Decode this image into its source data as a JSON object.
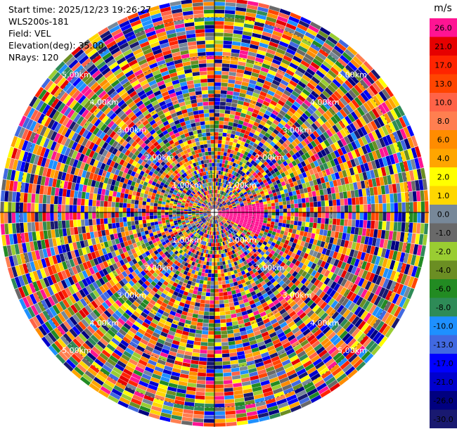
{
  "info": {
    "start_time": "Start time: 2025/12/23 19:26:27",
    "instrument": "WLS200s-181",
    "field": "Field: VEL",
    "elevation": "Elevation(deg): 35.00",
    "nrays": "NRays: 120"
  },
  "chart_data": {
    "type": "heatmap",
    "projection": "polar-ppi",
    "nrays": 120,
    "range_rings_km": [
      1,
      2,
      3,
      4,
      5
    ],
    "ring_labels": [
      "1.00km",
      "2.00km",
      "3.00km",
      "4.00km",
      "5.00km"
    ],
    "colorbar": {
      "unit": "m/s",
      "vmin": -30.0,
      "vmax": 30.0,
      "bins": [
        {
          "label": "26.0",
          "color": "#ff1493"
        },
        {
          "label": "21.0",
          "color": "#e60000"
        },
        {
          "label": "17.0",
          "color": "#ff2400"
        },
        {
          "label": "13.0",
          "color": "#ff4500"
        },
        {
          "label": "10.0",
          "color": "#ff6347"
        },
        {
          "label": "8.0",
          "color": "#ff7f50"
        },
        {
          "label": "6.0",
          "color": "#ff8c00"
        },
        {
          "label": "4.0",
          "color": "#ffa500"
        },
        {
          "label": "2.0",
          "color": "#ffff00"
        },
        {
          "label": "1.0",
          "color": "#ffd700"
        },
        {
          "label": "0.0",
          "color": "#778899"
        },
        {
          "label": "-1.0",
          "color": "#696969"
        },
        {
          "label": "-2.0",
          "color": "#9acd32"
        },
        {
          "label": "-4.0",
          "color": "#6b8e23"
        },
        {
          "label": "-6.0",
          "color": "#228b22"
        },
        {
          "label": "-8.0",
          "color": "#2e8b57"
        },
        {
          "label": "-10.0",
          "color": "#1e90ff"
        },
        {
          "label": "-13.0",
          "color": "#4169e1"
        },
        {
          "label": "-17.0",
          "color": "#0000ff"
        },
        {
          "label": "-21.0",
          "color": "#0000cd"
        },
        {
          "label": "-26.0",
          "color": "#000080"
        },
        {
          "label": "-30.0",
          "color": "#191970"
        }
      ]
    }
  }
}
